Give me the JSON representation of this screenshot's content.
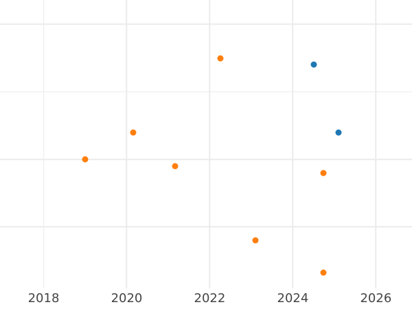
{
  "chart_data": {
    "type": "scatter",
    "title": "",
    "xlabel": "",
    "ylabel": "",
    "x_tick_labels": [
      "2018",
      "2020",
      "2022",
      "2024",
      "2026"
    ],
    "x_ticks": [
      2018,
      2020,
      2022,
      2024,
      2026
    ],
    "x_range": [
      2016.95,
      2026.87
    ],
    "y_tick_labels_visible": false,
    "y_axis_note": "y-axis labels cropped out of view; values expressed in gridline units (gridlines at 1,2,3,4)",
    "y_gridlines": [
      1,
      2,
      3,
      4
    ],
    "y_range": [
      0.09,
      4.36
    ],
    "grid": true,
    "legend": false,
    "colors": {
      "grid": "#ebebeb",
      "tick_label": "#444444",
      "background": "#ffffff"
    },
    "series": [
      {
        "name": "series-blue",
        "color": "#1f77b4",
        "points": [
          {
            "x": 2024.5,
            "y": 3.4
          },
          {
            "x": 2025.1,
            "y": 2.4
          }
        ]
      },
      {
        "name": "series-orange",
        "color": "#ff7f0e",
        "points": [
          {
            "x": 2019.0,
            "y": 2.0
          },
          {
            "x": 2020.16,
            "y": 2.4
          },
          {
            "x": 2021.17,
            "y": 1.9
          },
          {
            "x": 2022.26,
            "y": 3.5
          },
          {
            "x": 2023.1,
            "y": 0.8
          },
          {
            "x": 2024.74,
            "y": 1.8
          },
          {
            "x": 2024.73,
            "y": 0.32
          }
        ]
      }
    ]
  }
}
